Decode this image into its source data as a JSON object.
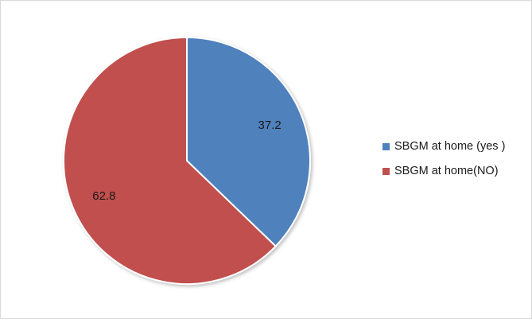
{
  "chart_data": {
    "type": "pie",
    "categories": [
      "SBGM at home (yes )",
      "SBGM at home(NO)"
    ],
    "values": [
      37.2,
      62.8
    ],
    "data_labels": [
      "37.2",
      "62.8"
    ],
    "colors": [
      "#4f81bd",
      "#c0504d"
    ],
    "legend_position": "right",
    "start_angle": "12 o'clock",
    "direction": "clockwise"
  },
  "legend": {
    "items": [
      {
        "label": "SBGM at home (yes )",
        "color": "#4f81bd"
      },
      {
        "label": "SBGM at home(NO)",
        "color": "#c0504d"
      }
    ]
  }
}
